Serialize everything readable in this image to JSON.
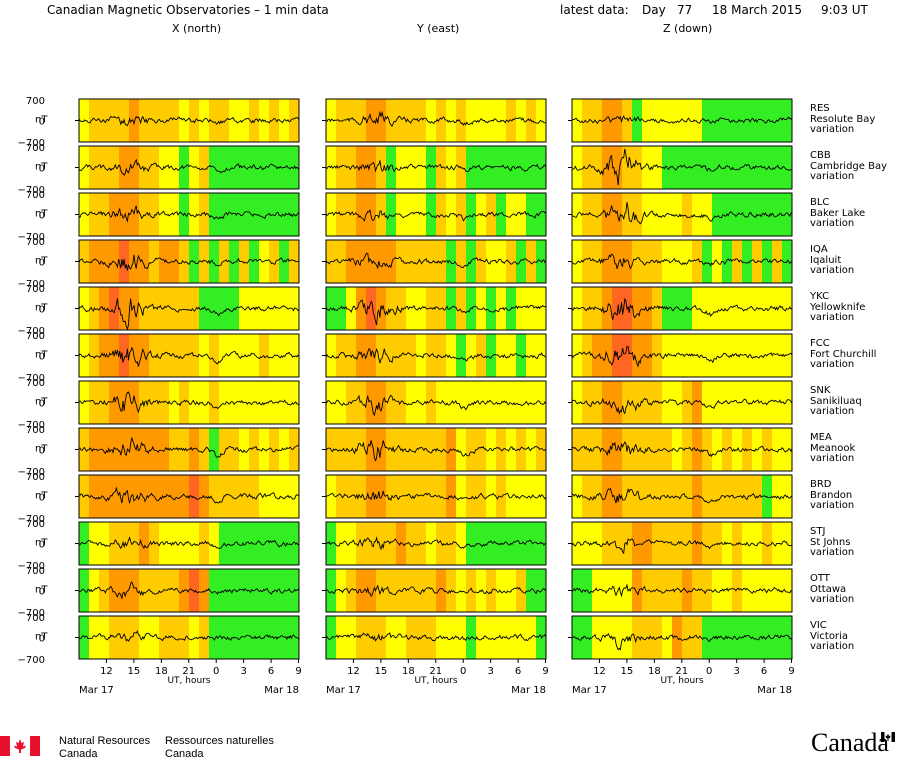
{
  "header": {
    "title": "Canadian Magnetic Observatories – 1 min data",
    "latest_label": "latest data:",
    "day_label": "Day",
    "day_number": "77",
    "date": "18 March 2015",
    "time": "9:03 UT"
  },
  "columns": [
    {
      "label": "X (north)"
    },
    {
      "label": "Y (east)"
    },
    {
      "label": "Z (down)"
    }
  ],
  "colors": {
    "quiet": "#33ee22",
    "unsettled": "#ffff00",
    "active": "#ffcc00",
    "storm": "#ff9900",
    "major": "#ff6622",
    "trace": "#000000"
  },
  "chart_data": {
    "type": "line",
    "title": "Canadian Magnetic Observatories – 1 min data",
    "ylabel": "nT",
    "xlabel": "UT, hours",
    "ylim": [
      -700,
      700
    ],
    "y_ticks": [
      "700",
      "0",
      "−700"
    ],
    "x_ticks": [
      "12",
      "15",
      "18",
      "21",
      "0",
      "3",
      "6",
      "9"
    ],
    "x_tick_hours": [
      12,
      15,
      18,
      21,
      24,
      27,
      30,
      33
    ],
    "x_range_hours": [
      9,
      33.05
    ],
    "date_start": "Mar 17",
    "date_end": "Mar 18",
    "activity_level_codes": {
      "0": "quiet",
      "1": "unsettled",
      "2": "active",
      "3": "storm",
      "4": "major"
    },
    "stations": [
      {
        "code": "RES",
        "name": "Resolute Bay",
        "kind": "variation",
        "bands": [
          [
            1,
            2,
            2,
            2,
            2,
            3,
            2,
            2,
            2,
            2,
            1,
            2,
            1,
            2,
            2,
            1,
            1,
            2,
            1,
            2,
            1,
            2
          ],
          [
            1,
            2,
            2,
            2,
            3,
            3,
            2,
            2,
            2,
            2,
            1,
            2,
            1,
            2,
            1,
            1,
            1,
            1,
            2,
            1,
            2,
            1
          ],
          [
            1,
            2,
            2,
            3,
            3,
            2,
            0,
            1,
            1,
            1,
            1,
            1,
            1,
            0,
            0,
            0,
            0,
            0,
            0,
            0,
            0,
            0
          ]
        ],
        "amp": [
          0.18,
          0.2,
          0.08
        ],
        "dip": [
          0.1,
          0.15,
          0.05
        ]
      },
      {
        "code": "CBB",
        "name": "Cambridge Bay",
        "kind": "variation",
        "bands": [
          [
            1,
            2,
            2,
            2,
            3,
            3,
            2,
            2,
            1,
            1,
            0,
            1,
            2,
            0,
            0,
            0,
            0,
            0,
            0,
            0,
            0,
            0
          ],
          [
            1,
            2,
            2,
            3,
            3,
            2,
            0,
            1,
            1,
            1,
            0,
            2,
            1,
            2,
            0,
            0,
            0,
            0,
            0,
            0,
            0,
            0
          ],
          [
            1,
            2,
            2,
            3,
            3,
            2,
            2,
            1,
            1,
            0,
            0,
            0,
            0,
            0,
            0,
            0,
            0,
            0,
            0,
            0,
            0,
            0
          ]
        ],
        "amp": [
          0.2,
          0.18,
          0.6
        ],
        "dip": [
          0.25,
          0.15,
          0.1
        ]
      },
      {
        "code": "BLC",
        "name": "Baker Lake",
        "kind": "variation",
        "bands": [
          [
            1,
            2,
            2,
            3,
            3,
            3,
            2,
            2,
            1,
            1,
            0,
            1,
            2,
            0,
            0,
            0,
            0,
            0,
            0,
            0,
            0,
            0
          ],
          [
            1,
            2,
            2,
            3,
            3,
            2,
            0,
            1,
            1,
            1,
            0,
            2,
            1,
            2,
            0,
            1,
            2,
            0,
            1,
            1,
            0,
            0
          ],
          [
            1,
            2,
            2,
            3,
            3,
            2,
            2,
            1,
            1,
            1,
            1,
            2,
            1,
            1,
            0,
            0,
            0,
            0,
            0,
            0,
            0,
            0
          ]
        ],
        "amp": [
          0.22,
          0.16,
          0.55
        ],
        "dip": [
          0.25,
          0.2,
          0.15
        ]
      },
      {
        "code": "IQA",
        "name": "Iqaluit",
        "kind": "variation",
        "bands": [
          [
            2,
            3,
            3,
            3,
            4,
            3,
            3,
            2,
            3,
            3,
            2,
            0,
            2,
            0,
            2,
            0,
            2,
            0,
            1,
            2,
            0,
            2
          ],
          [
            2,
            2,
            3,
            3,
            3,
            3,
            3,
            2,
            2,
            2,
            2,
            2,
            0,
            2,
            0,
            2,
            1,
            1,
            2,
            0,
            2,
            0
          ],
          [
            1,
            2,
            2,
            3,
            3,
            3,
            2,
            2,
            2,
            1,
            1,
            1,
            2,
            0,
            1,
            0,
            2,
            0,
            2,
            0,
            2,
            0
          ]
        ],
        "amp": [
          0.35,
          0.2,
          0.25
        ],
        "dip": [
          0.15,
          0.2,
          0.1
        ]
      },
      {
        "code": "YKC",
        "name": "Yellowknife",
        "kind": "variation",
        "bands": [
          [
            1,
            2,
            3,
            4,
            3,
            3,
            2,
            2,
            2,
            2,
            2,
            2,
            0,
            0,
            0,
            0,
            1,
            1,
            1,
            1,
            1,
            1
          ],
          [
            0,
            0,
            1,
            3,
            4,
            3,
            2,
            2,
            1,
            1,
            2,
            2,
            0,
            2,
            0,
            1,
            0,
            1,
            0,
            1,
            1,
            1
          ],
          [
            1,
            2,
            2,
            3,
            4,
            4,
            3,
            3,
            2,
            0,
            0,
            0,
            1,
            1,
            1,
            1,
            1,
            1,
            1,
            1,
            1,
            1
          ]
        ],
        "amp": [
          0.5,
          0.45,
          0.55
        ],
        "dip": [
          0.3,
          0.25,
          0.3
        ]
      },
      {
        "code": "FCC",
        "name": "Fort Churchill",
        "kind": "variation",
        "bands": [
          [
            1,
            2,
            3,
            3,
            4,
            3,
            3,
            2,
            2,
            2,
            2,
            2,
            1,
            2,
            1,
            1,
            1,
            1,
            2,
            1,
            1,
            1
          ],
          [
            1,
            2,
            2,
            3,
            3,
            2,
            2,
            2,
            2,
            1,
            2,
            2,
            1,
            0,
            1,
            2,
            0,
            1,
            1,
            0,
            1,
            1
          ],
          [
            1,
            2,
            3,
            3,
            4,
            4,
            3,
            3,
            2,
            1,
            1,
            1,
            1,
            1,
            1,
            1,
            1,
            1,
            1,
            1,
            1,
            1
          ]
        ],
        "amp": [
          0.45,
          0.3,
          0.5
        ],
        "dip": [
          0.35,
          0.2,
          0.3
        ]
      },
      {
        "code": "SNK",
        "name": "Sanikiluaq",
        "kind": "variation",
        "bands": [
          [
            1,
            2,
            2,
            3,
            3,
            3,
            2,
            2,
            2,
            1,
            2,
            1,
            1,
            2,
            1,
            1,
            1,
            1,
            1,
            1,
            1,
            1
          ],
          [
            1,
            1,
            2,
            2,
            3,
            3,
            2,
            2,
            1,
            1,
            2,
            1,
            1,
            1,
            1,
            1,
            1,
            1,
            1,
            1,
            1,
            1
          ],
          [
            1,
            2,
            2,
            3,
            3,
            2,
            2,
            2,
            2,
            1,
            1,
            2,
            3,
            1,
            1,
            1,
            1,
            1,
            1,
            1,
            1,
            1
          ]
        ],
        "amp": [
          0.4,
          0.35,
          0.35
        ],
        "dip": [
          0.3,
          0.3,
          0.3
        ]
      },
      {
        "code": "MEA",
        "name": "Meanook",
        "kind": "variation",
        "bands": [
          [
            2,
            3,
            3,
            3,
            3,
            3,
            3,
            3,
            3,
            2,
            2,
            3,
            2,
            0,
            2,
            2,
            1,
            2,
            1,
            2,
            1,
            2
          ],
          [
            2,
            2,
            2,
            2,
            3,
            3,
            2,
            2,
            2,
            2,
            2,
            2,
            3,
            1,
            2,
            2,
            1,
            2,
            1,
            2,
            1,
            2
          ],
          [
            2,
            2,
            2,
            3,
            3,
            2,
            2,
            2,
            2,
            2,
            1,
            2,
            3,
            2,
            1,
            2,
            1,
            2,
            1,
            2,
            1,
            1
          ]
        ],
        "amp": [
          0.35,
          0.45,
          0.35
        ],
        "dip": [
          0.3,
          0.25,
          0.3
        ]
      },
      {
        "code": "BRD",
        "name": "Brandon",
        "kind": "variation",
        "bands": [
          [
            2,
            3,
            3,
            3,
            3,
            3,
            3,
            3,
            3,
            3,
            3,
            4,
            3,
            2,
            2,
            2,
            2,
            2,
            1,
            1,
            1,
            1
          ],
          [
            1,
            2,
            2,
            2,
            3,
            3,
            2,
            2,
            2,
            2,
            2,
            2,
            3,
            1,
            2,
            2,
            1,
            2,
            1,
            1,
            1,
            1
          ],
          [
            1,
            2,
            2,
            3,
            3,
            2,
            2,
            2,
            2,
            2,
            2,
            2,
            3,
            2,
            2,
            2,
            2,
            2,
            2,
            0,
            1,
            1
          ]
        ],
        "amp": [
          0.35,
          0.2,
          0.3
        ],
        "dip": [
          0.25,
          0.1,
          0.3
        ]
      },
      {
        "code": "STJ",
        "name": "St Johns",
        "kind": "variation",
        "bands": [
          [
            0,
            1,
            1,
            2,
            2,
            2,
            3,
            2,
            1,
            1,
            1,
            1,
            2,
            1,
            0,
            0,
            0,
            0,
            0,
            0,
            0,
            0
          ],
          [
            0,
            1,
            1,
            2,
            2,
            2,
            2,
            3,
            2,
            2,
            1,
            2,
            2,
            1,
            0,
            0,
            0,
            0,
            0,
            0,
            0,
            0
          ],
          [
            1,
            1,
            1,
            2,
            2,
            2,
            3,
            3,
            2,
            2,
            2,
            2,
            3,
            2,
            2,
            1,
            2,
            1,
            1,
            2,
            1,
            1
          ]
        ],
        "amp": [
          0.15,
          0.15,
          0.2
        ],
        "dip": [
          0.1,
          0.1,
          0.2
        ]
      },
      {
        "code": "OTT",
        "name": "Ottawa",
        "kind": "variation",
        "bands": [
          [
            0,
            1,
            2,
            3,
            3,
            3,
            2,
            2,
            2,
            2,
            3,
            4,
            3,
            0,
            0,
            0,
            0,
            0,
            0,
            0,
            0,
            0
          ],
          [
            0,
            1,
            2,
            3,
            3,
            2,
            2,
            2,
            2,
            2,
            2,
            3,
            2,
            1,
            2,
            1,
            2,
            1,
            1,
            2,
            0,
            0
          ],
          [
            0,
            0,
            1,
            1,
            1,
            1,
            3,
            2,
            2,
            2,
            2,
            3,
            2,
            2,
            1,
            1,
            2,
            1,
            1,
            1,
            1,
            1
          ]
        ],
        "amp": [
          0.2,
          0.15,
          0.15
        ],
        "dip": [
          0.15,
          0.1,
          0.1
        ]
      },
      {
        "code": "VIC",
        "name": "Victoria",
        "kind": "variation",
        "bands": [
          [
            0,
            1,
            1,
            2,
            2,
            2,
            1,
            1,
            2,
            2,
            2,
            1,
            2,
            0,
            0,
            0,
            0,
            0,
            0,
            0,
            0,
            0
          ],
          [
            0,
            1,
            1,
            2,
            2,
            2,
            1,
            1,
            2,
            2,
            2,
            1,
            1,
            1,
            0,
            1,
            1,
            1,
            1,
            1,
            1,
            0
          ],
          [
            0,
            0,
            1,
            1,
            1,
            1,
            2,
            2,
            2,
            1,
            3,
            2,
            2,
            0,
            0,
            0,
            0,
            0,
            0,
            0,
            0,
            0
          ]
        ],
        "amp": [
          0.15,
          0.1,
          0.25
        ],
        "dip": [
          0.05,
          0.05,
          0.05
        ]
      }
    ]
  },
  "footer": {
    "agency_en_1": "Natural Resources",
    "agency_en_2": "Canada",
    "agency_fr_1": "Ressources naturelles",
    "agency_fr_2": "Canada",
    "wordmark": "Canada"
  }
}
